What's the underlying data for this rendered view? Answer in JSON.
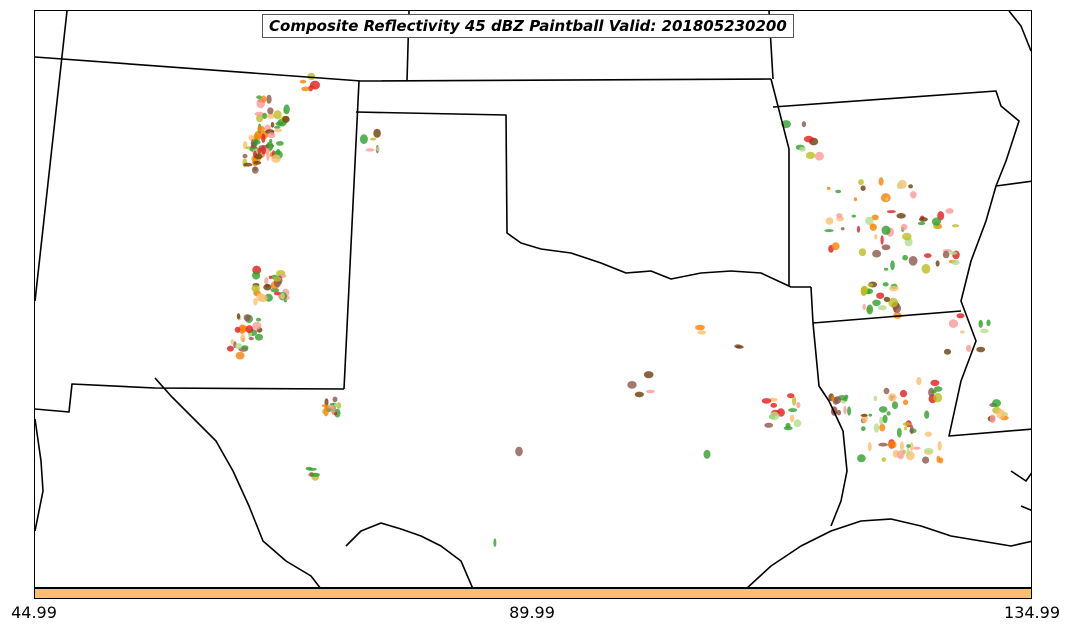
{
  "title": "Composite Reflectivity 45 dBZ Paintball Valid: 201805230200",
  "colorbar": {
    "color": "#fdbf6f",
    "tick_labels": [
      "44.99",
      "89.99",
      "134.99"
    ]
  },
  "paintball_colors": [
    "#e31a1c",
    "#fb9a99",
    "#33a02c",
    "#6a3d0a",
    "#fdbf6f",
    "#ff7f00",
    "#b2df8a",
    "#8c564b",
    "#bcbd22",
    "#2ca02c"
  ],
  "map_background": "#ffffff",
  "boundary_color": "#000000"
}
